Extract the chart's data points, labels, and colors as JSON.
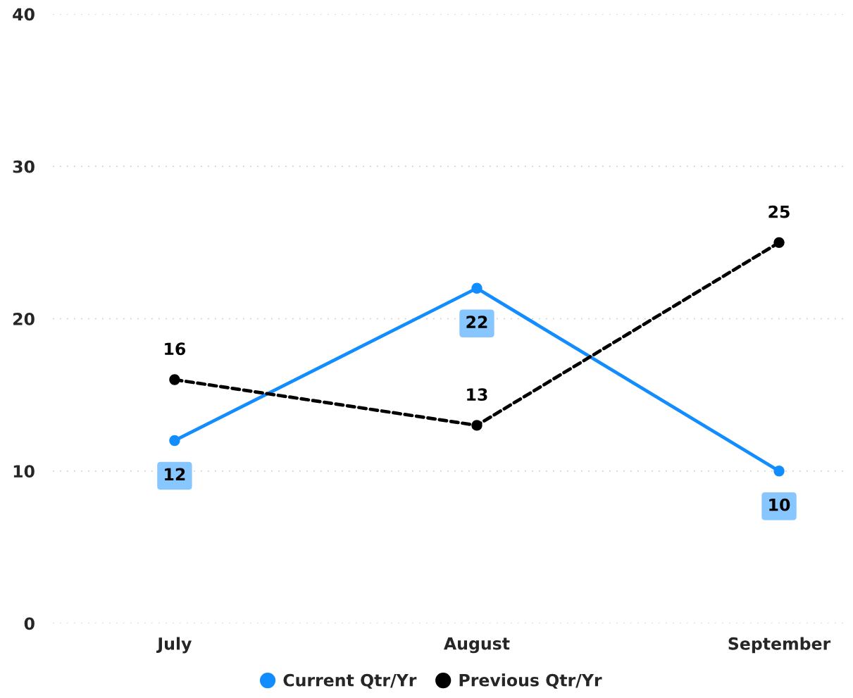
{
  "chart_data": {
    "type": "line",
    "categories": [
      "July",
      "August",
      "September"
    ],
    "series": [
      {
        "name": "Current Qtr/Yr",
        "color": "#118dff",
        "values": [
          12,
          22,
          10
        ],
        "line_style": "solid"
      },
      {
        "name": "Previous Qtr/Yr",
        "color": "#000000",
        "values": [
          16,
          13,
          25
        ],
        "line_style": "dashed"
      }
    ],
    "ylim": [
      0,
      40
    ],
    "yticks": [
      0,
      10,
      20,
      30,
      40
    ],
    "grid": "y",
    "legend": "bottom",
    "marker": "circle",
    "data_labels": true
  }
}
